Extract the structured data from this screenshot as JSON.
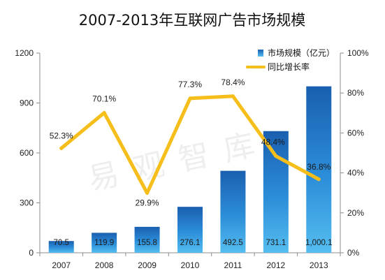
{
  "chart_data": {
    "type": "bar+line",
    "title": "2007-2013年互联网广告市场规模",
    "categories": [
      "2007",
      "2008",
      "2009",
      "2010",
      "2011",
      "2012",
      "2013"
    ],
    "series": [
      {
        "name": "市场规模（亿元）",
        "type": "bar",
        "axis": "left",
        "values": [
          70.5,
          119.9,
          155.8,
          276.1,
          492.5,
          731.1,
          1000.1
        ],
        "labels": [
          "70.5",
          "119.9",
          "155.8",
          "276.1",
          "492.5",
          "731.1",
          "1,000.1"
        ],
        "color": "#2e86d4"
      },
      {
        "name": "同比增长率",
        "type": "line",
        "axis": "right",
        "values": [
          52.3,
          70.1,
          29.9,
          77.3,
          78.4,
          48.4,
          36.8
        ],
        "labels": [
          "52.3%",
          "70.1%",
          "29.9%",
          "77.3%",
          "78.4%",
          "48.4%",
          "36.8%"
        ],
        "color": "#f6be1a"
      }
    ],
    "y_left": {
      "min": 0,
      "max": 1200,
      "ticks": [
        "0",
        "300",
        "600",
        "900",
        "1200"
      ]
    },
    "y_right": {
      "min": 0,
      "max": 100,
      "ticks": [
        "0%",
        "20%",
        "40%",
        "60%",
        "80%",
        "100%"
      ]
    },
    "legend_position": "top-right",
    "grid": false
  },
  "watermark": "易观智库"
}
